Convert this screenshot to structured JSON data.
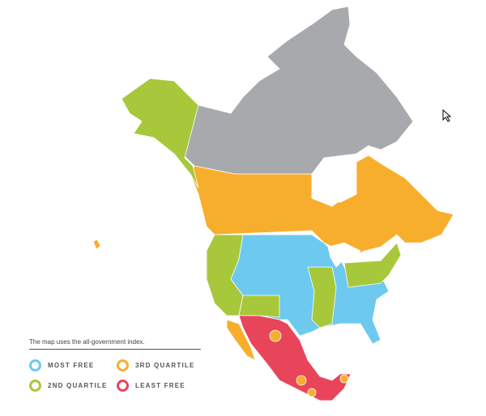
{
  "legend": {
    "note": "The map uses the all-government index.",
    "items": [
      {
        "label": "MOST FREE",
        "color": "#6dcaee"
      },
      {
        "label": "3RD QUARTILE",
        "color": "#f8ae2d"
      },
      {
        "label": "2ND QUARTILE",
        "color": "#a7c83b"
      },
      {
        "label": "LEAST FREE",
        "color": "#e8455b"
      }
    ]
  },
  "colors": {
    "most_free": "#6dcaee",
    "second_quartile": "#a7c83b",
    "third_quartile": "#f8ae2d",
    "least_free": "#e8455b",
    "no_data": "#a7a9ac"
  },
  "regions": [
    {
      "name": "Alaska",
      "category": "2nd quartile"
    },
    {
      "name": "Hawaii",
      "category": "3rd quartile"
    },
    {
      "name": "Canadian territories",
      "category": "no data"
    },
    {
      "name": "Canadian provinces",
      "category": "3rd quartile"
    },
    {
      "name": "US West Coast",
      "category": "2nd quartile"
    },
    {
      "name": "US Central",
      "category": "most free"
    },
    {
      "name": "US Southwest",
      "category": "2nd quartile"
    },
    {
      "name": "US Mississippi valley",
      "category": "2nd quartile"
    },
    {
      "name": "US Northeast / Midwest",
      "category": "2nd quartile"
    },
    {
      "name": "Mexico",
      "category": "least free"
    }
  ]
}
